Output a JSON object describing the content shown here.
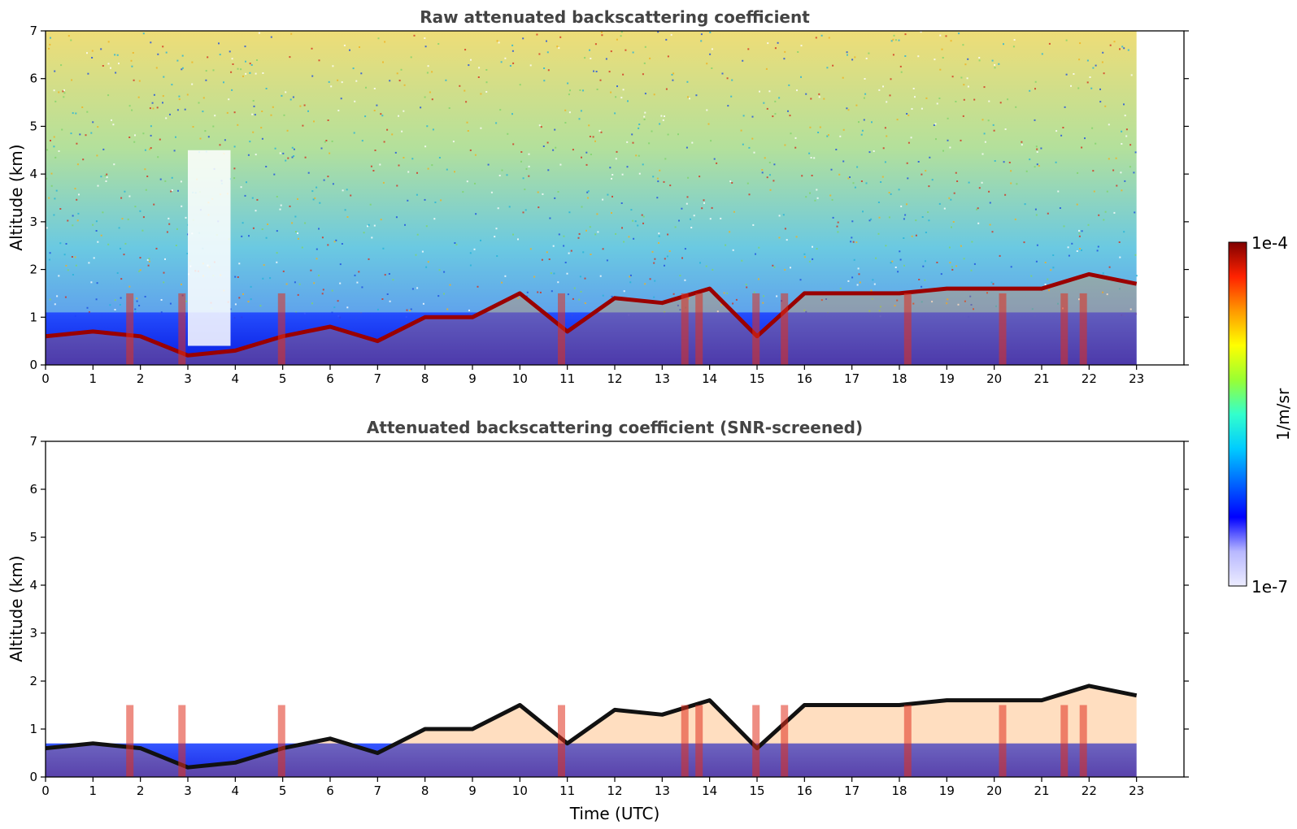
{
  "chart_data": [
    {
      "type": "heatmap",
      "title": "Raw attenuated backscattering coefficient",
      "xlabel": "",
      "ylabel": "Altitude (km)",
      "xlim": [
        0,
        24
      ],
      "ylim": [
        0,
        7
      ],
      "data_end_time": 23,
      "xticks": [
        "0",
        "1",
        "2",
        "3",
        "4",
        "5",
        "6",
        "7",
        "8",
        "9",
        "10",
        "11",
        "12",
        "13",
        "14",
        "15",
        "16",
        "17",
        "18",
        "19",
        "20",
        "21",
        "22",
        "23"
      ],
      "yticks": [
        "0",
        "1",
        "2",
        "3",
        "4",
        "5",
        "6",
        "7"
      ],
      "grid": false,
      "cloud_layer_top_km": [
        {
          "time": 0,
          "altitude_km": 0.6
        },
        {
          "time": 1,
          "altitude_km": 0.7
        },
        {
          "time": 2,
          "altitude_km": 0.6
        },
        {
          "time": 3,
          "altitude_km": 0.2
        },
        {
          "time": 4,
          "altitude_km": 0.3
        },
        {
          "time": 5,
          "altitude_km": 0.6
        },
        {
          "time": 6,
          "altitude_km": 0.8
        },
        {
          "time": 7,
          "altitude_km": 0.5
        },
        {
          "time": 8,
          "altitude_km": 1.0
        },
        {
          "time": 9,
          "altitude_km": 1.0
        },
        {
          "time": 10,
          "altitude_km": 1.5
        },
        {
          "time": 11,
          "altitude_km": 0.7
        },
        {
          "time": 12,
          "altitude_km": 1.4
        },
        {
          "time": 13,
          "altitude_km": 1.3
        },
        {
          "time": 14,
          "altitude_km": 1.6
        },
        {
          "time": 15,
          "altitude_km": 0.6
        },
        {
          "time": 16,
          "altitude_km": 1.5
        },
        {
          "time": 17,
          "altitude_km": 1.5
        },
        {
          "time": 18,
          "altitude_km": 1.5
        },
        {
          "time": 19,
          "altitude_km": 1.6
        },
        {
          "time": 20,
          "altitude_km": 1.6
        },
        {
          "time": 21,
          "altitude_km": 1.6
        },
        {
          "time": 22,
          "altitude_km": 1.9
        },
        {
          "time": 23,
          "altitude_km": 1.7
        }
      ]
    },
    {
      "type": "heatmap",
      "title": "Attenuated backscattering coefficient (SNR-screened)",
      "xlabel": "Time (UTC)",
      "ylabel": "Altitude (km)",
      "xlim": [
        0,
        24
      ],
      "ylim": [
        0,
        7
      ],
      "data_end_time": 23,
      "xticks": [
        "0",
        "1",
        "2",
        "3",
        "4",
        "5",
        "6",
        "7",
        "8",
        "9",
        "10",
        "11",
        "12",
        "13",
        "14",
        "15",
        "16",
        "17",
        "18",
        "19",
        "20",
        "21",
        "22",
        "23"
      ],
      "yticks": [
        "0",
        "1",
        "2",
        "3",
        "4",
        "5",
        "6",
        "7"
      ],
      "grid": false
    }
  ],
  "colorbar": {
    "label": "1/m/sr",
    "max_label": "1e-4",
    "min_label": "1e-7",
    "scale": "log",
    "colors": [
      "#ececff",
      "#b8b8ff",
      "#0000ff",
      "#0066ff",
      "#00ccff",
      "#33ffcc",
      "#99ff33",
      "#ffff00",
      "#ff9900",
      "#ff2200",
      "#800000"
    ]
  }
}
